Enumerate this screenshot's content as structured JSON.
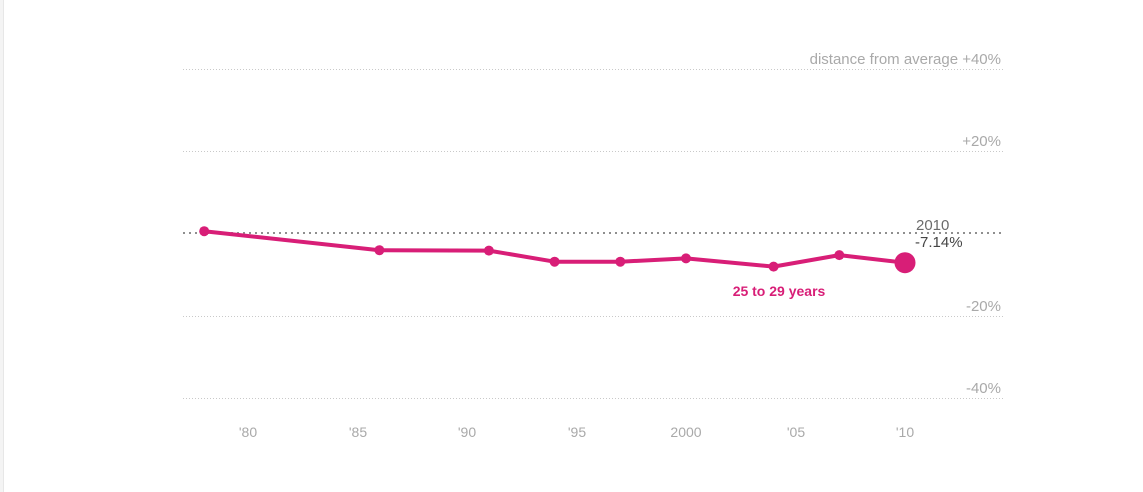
{
  "chart_data": {
    "type": "line",
    "series": [
      {
        "name": "25 to 29 years",
        "x": [
          1978,
          1986,
          1991,
          1994,
          1997,
          2000,
          2004,
          2007,
          2010
        ],
        "values": [
          0.5,
          -4.1,
          -4.2,
          -6.9,
          -6.9,
          -6.1,
          -8.1,
          -5.3,
          -7.14
        ]
      }
    ],
    "x_tick_labels": [
      "'80",
      "'85",
      "'90",
      "'95",
      "2000",
      "'05",
      "'10"
    ],
    "x_tick_years": [
      1980,
      1985,
      1990,
      1995,
      2000,
      2005,
      2010
    ],
    "y_gridlines": [
      40,
      20,
      -20,
      -40
    ],
    "y_gridline_labels": [
      "distance from average +40%",
      "+20%",
      "-20%",
      "-40%"
    ],
    "zero_line_value": 0,
    "ylim": [
      -50,
      50
    ],
    "xlim": [
      1977,
      2011.5
    ],
    "grid": "horizontal-dotted",
    "legend_position": "inline-annotation"
  },
  "annotations": {
    "end_year_label": "2010",
    "end_value_label": "-7.14%",
    "series_label": "25 to 29 years"
  },
  "colors": {
    "series_pink": "#d81e77",
    "gridline": "#c9c9c9",
    "zero_line": "#8f8f8f",
    "axis_text": "#a9a9a9",
    "annotation_year_text": "#6b6b6b",
    "annotation_value_text": "#454545",
    "background": "#ffffff",
    "left_strip": "#f4f4f4"
  }
}
